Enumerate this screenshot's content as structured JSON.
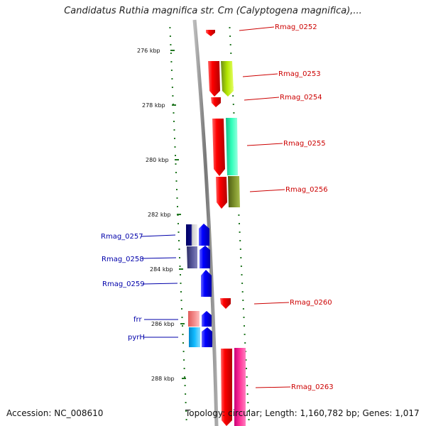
{
  "title": "Candidatus Ruthia magnifica str. Cm (Calyptogena magnifica),...",
  "footer": {
    "accession": "Accession: NC_008610",
    "topology": "Topology: circular; Length: 1,160,782 bp; Genes: 1,017"
  },
  "kbp_ticks": [
    {
      "label": "276 kbp"
    },
    {
      "label": "278 kbp"
    },
    {
      "label": "280 kbp"
    },
    {
      "label": "282 kbp"
    },
    {
      "label": "284 kbp"
    },
    {
      "label": "286 kbp"
    },
    {
      "label": "288 kbp"
    }
  ],
  "genes_right": [
    {
      "name": "Rmag_0252",
      "color": "#cc0000"
    },
    {
      "name": "Rmag_0253",
      "color": "#cc0000"
    },
    {
      "name": "Rmag_0254",
      "color": "#cc0000"
    },
    {
      "name": "Rmag_0255",
      "color": "#cc0000"
    },
    {
      "name": "Rmag_0256",
      "color": "#cc0000"
    },
    {
      "name": "Rmag_0260",
      "color": "#cc0000"
    },
    {
      "name": "Rmag_0263",
      "color": "#cc0000"
    }
  ],
  "genes_left": [
    {
      "name": "Rmag_0257",
      "color": "#0000aa"
    },
    {
      "name": "Rmag_0258",
      "color": "#0000aa"
    },
    {
      "name": "Rmag_0259",
      "color": "#0000aa"
    },
    {
      "name": "frr",
      "color": "#0000aa"
    },
    {
      "name": "pyrH",
      "color": "#0000aa"
    }
  ],
  "colors": {
    "forward_strand": "#ee0000",
    "reverse_strand": "#0000ee",
    "backbone": "#888888",
    "ticks": "#227722"
  }
}
